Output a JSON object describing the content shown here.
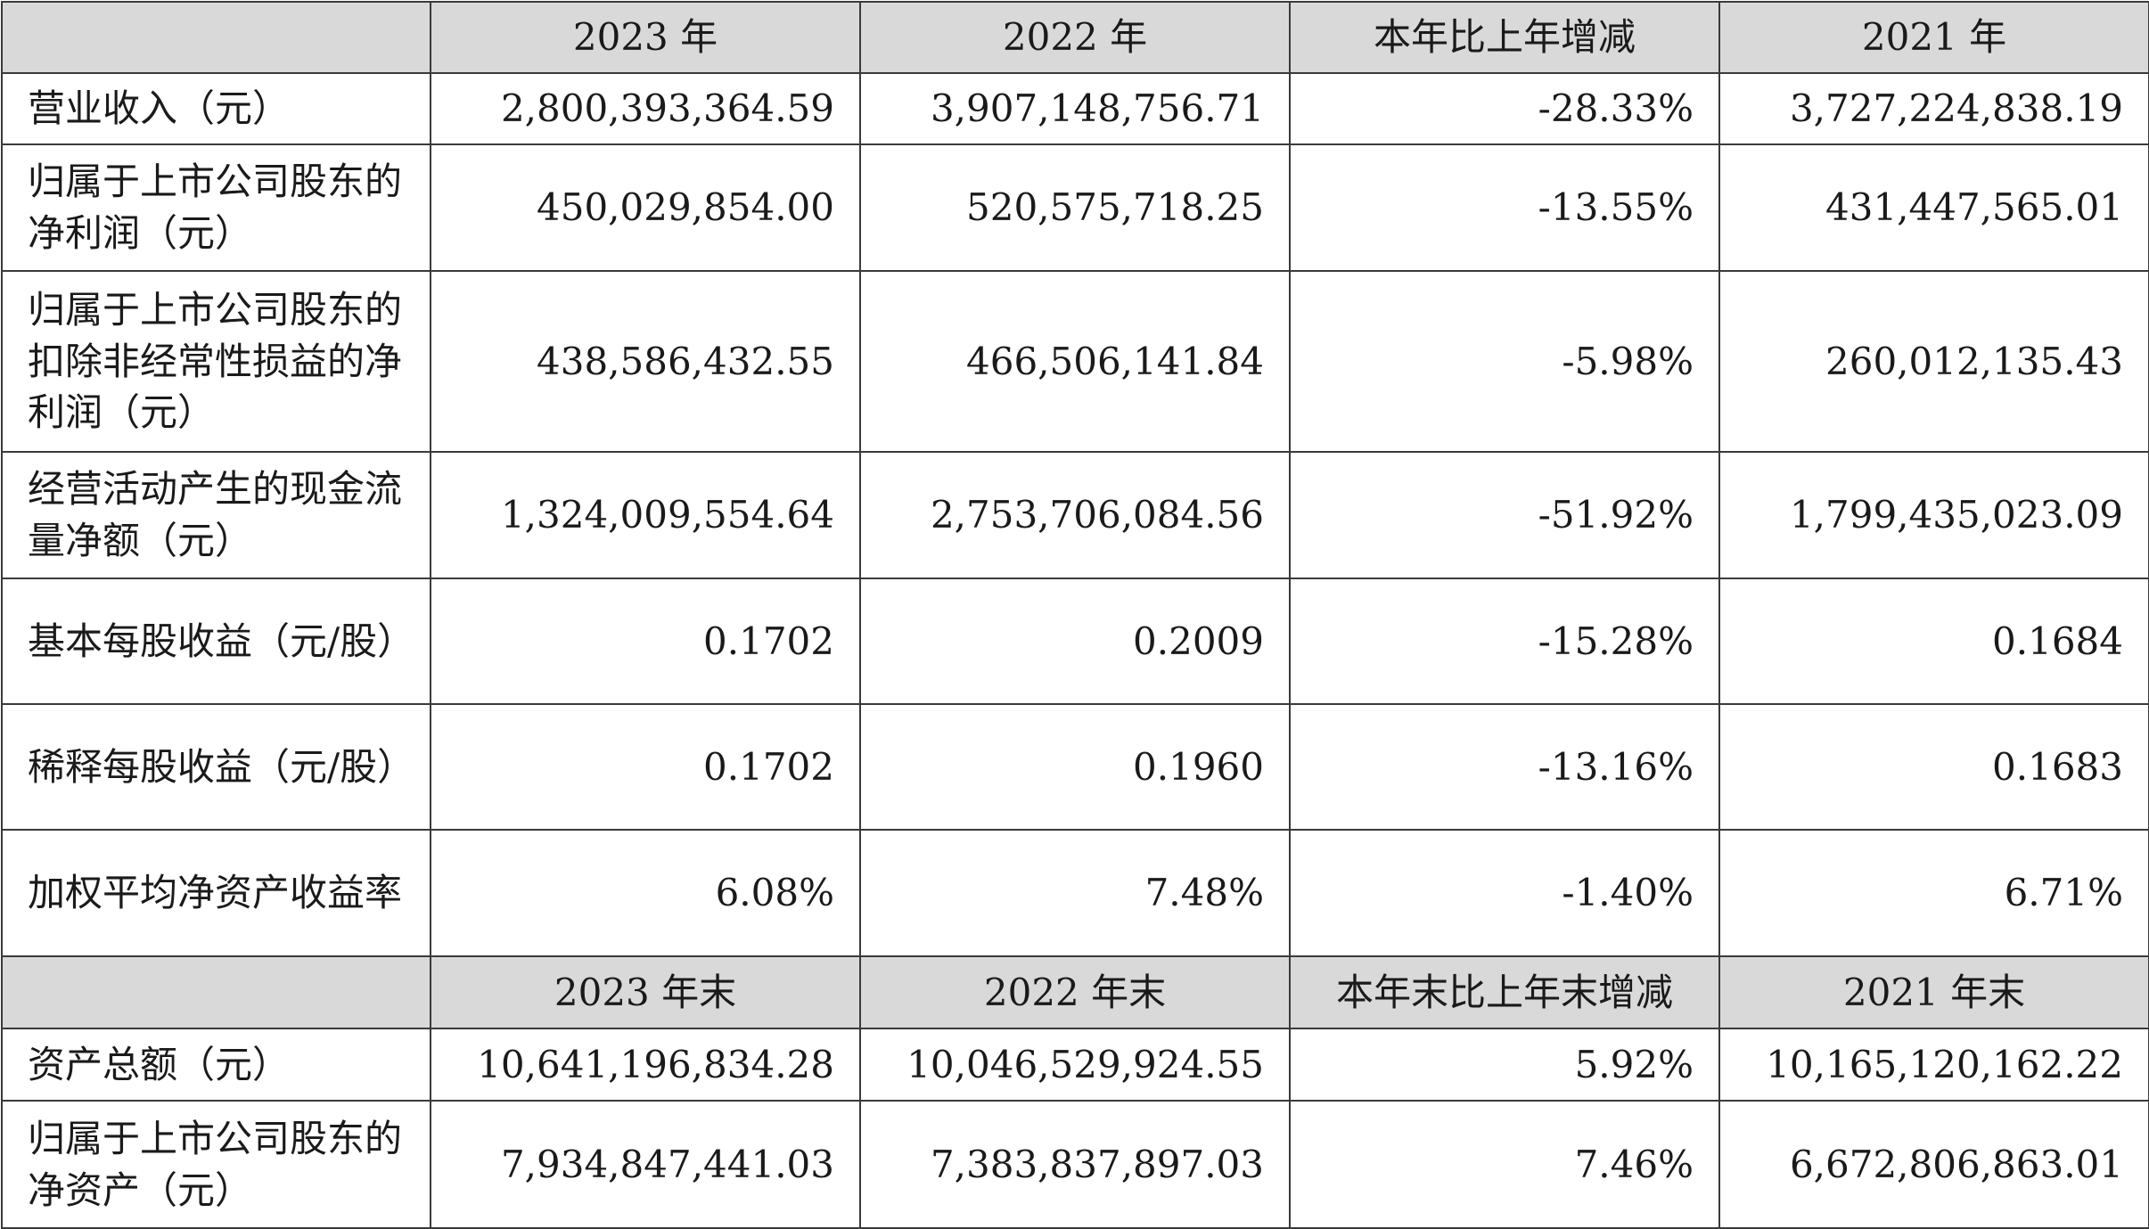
{
  "header1": [
    "",
    "2023 年",
    "2022 年",
    "本年比上年增减",
    "2021 年"
  ],
  "header2": [
    "",
    "2023 年末",
    "2022 年末",
    "本年末比上年末增减",
    "2021 年末"
  ],
  "rows1": [
    {
      "label": "营业收入（元）",
      "values": [
        "2,800,393,364.59",
        "3,907,148,756.71",
        "-28.33%",
        "3,727,224,838.19"
      ]
    },
    {
      "label": "归属于上市公司股东的净利润（元）",
      "values": [
        "450,029,854.00",
        "520,575,718.25",
        "-13.55%",
        "431,447,565.01"
      ]
    },
    {
      "label": "归属于上市公司股东的扣除非经常性损益的净利润（元）",
      "values": [
        "438,586,432.55",
        "466,506,141.84",
        "-5.98%",
        "260,012,135.43"
      ]
    },
    {
      "label": "经营活动产生的现金流量净额（元）",
      "values": [
        "1,324,009,554.64",
        "2,753,706,084.56",
        "-51.92%",
        "1,799,435,023.09"
      ]
    },
    {
      "label": "基本每股收益（元/股）",
      "values": [
        "0.1702",
        "0.2009",
        "-15.28%",
        "0.1684"
      ]
    },
    {
      "label": "稀释每股收益（元/股）",
      "values": [
        "0.1702",
        "0.1960",
        "-13.16%",
        "0.1683"
      ]
    },
    {
      "label": "加权平均净资产收益率",
      "values": [
        "6.08%",
        "7.48%",
        "-1.40%",
        "6.71%"
      ]
    }
  ],
  "rows2": [
    {
      "label": "资产总额（元）",
      "values": [
        "10,641,196,834.28",
        "10,046,529,924.55",
        "5.92%",
        "10,165,120,162.22"
      ]
    },
    {
      "label": "归属于上市公司股东的净资产（元）",
      "values": [
        "7,934,847,441.03",
        "7,383,837,897.03",
        "7.46%",
        "6,672,806,863.01"
      ]
    }
  ]
}
